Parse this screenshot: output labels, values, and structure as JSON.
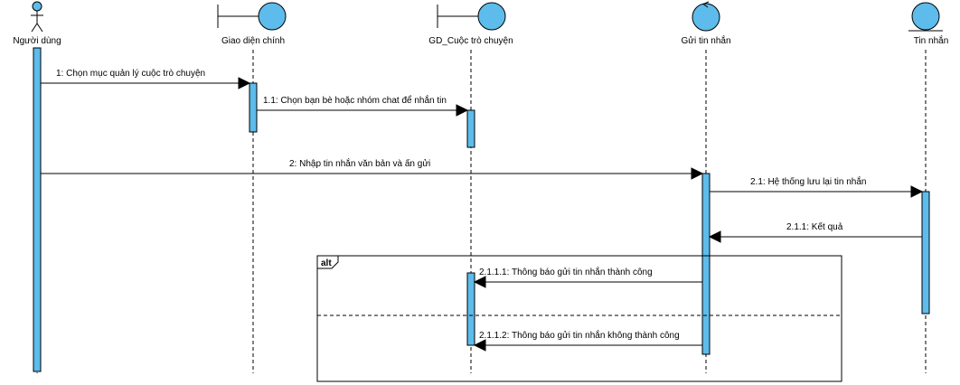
{
  "diagram": {
    "type": "sequence",
    "colors": {
      "lifeline_fill": "#5DBCEB",
      "activation_fill": "#5DBCEB",
      "stroke": "#000000"
    },
    "participants": [
      {
        "id": "p0",
        "label": "Người dùng",
        "kind": "actor"
      },
      {
        "id": "p1",
        "label": "Giao diện chính",
        "kind": "boundary"
      },
      {
        "id": "p2",
        "label": "GD_Cuộc trò chuyện",
        "kind": "boundary"
      },
      {
        "id": "p3",
        "label": "Gửi tin nhắn",
        "kind": "control"
      },
      {
        "id": "p4",
        "label": "Tin nhắn",
        "kind": "entity"
      }
    ],
    "messages": [
      {
        "label": "1:  Chọn mục quản lý cuộc trò chuyện",
        "from": "p0",
        "to": "p1",
        "kind": "call"
      },
      {
        "label": "1.1: Chọn bạn bè hoặc nhóm chat để nhắn tin",
        "from": "p1",
        "to": "p2",
        "kind": "call"
      },
      {
        "label": "2: Nhập tin nhắn văn bản và ấn gửi",
        "from": "p0",
        "to": "p3",
        "kind": "call"
      },
      {
        "label": "2.1: Hệ thống lưu lại tin nhắn",
        "from": "p3",
        "to": "p4",
        "kind": "call"
      },
      {
        "label": "2.1.1: Kết quả",
        "from": "p4",
        "to": "p3",
        "kind": "return"
      },
      {
        "label": "2.1.1.1: Thông báo gửi tin nhắn thành công",
        "from": "p3",
        "to": "p2",
        "kind": "return"
      },
      {
        "label": "2.1.1.2: Thông báo gửi tin nhắn không thành công",
        "from": "p3",
        "to": "p2",
        "kind": "return"
      }
    ],
    "fragment": {
      "label": "alt"
    }
  }
}
